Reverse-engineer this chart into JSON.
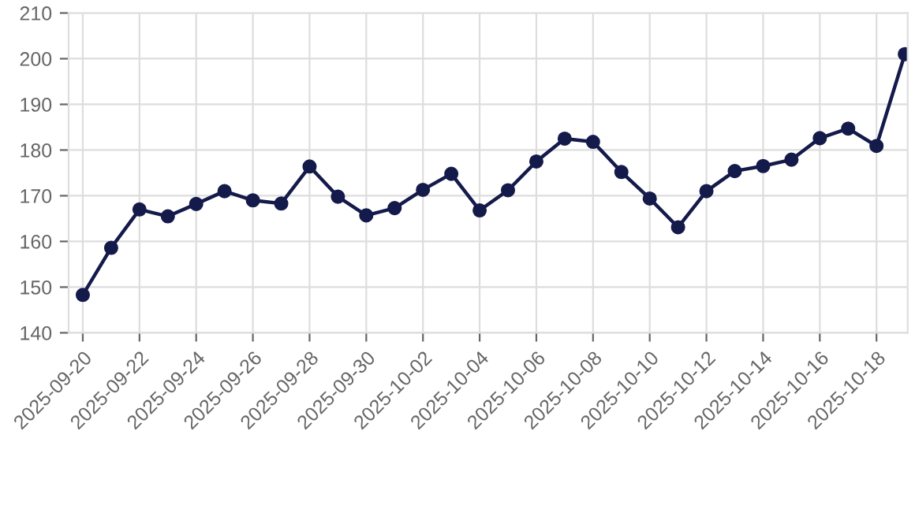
{
  "chart_data": {
    "type": "line",
    "categories": [
      "2025-09-20",
      null,
      "2025-09-22",
      null,
      "2025-09-24",
      null,
      "2025-09-26",
      null,
      "2025-09-28",
      null,
      "2025-09-30",
      null,
      "2025-10-02",
      null,
      "2025-10-04",
      null,
      "2025-10-06",
      null,
      "2025-10-08",
      null,
      "2025-10-10",
      null,
      "2025-10-12",
      null,
      "2025-10-14",
      null,
      "2025-10-16",
      null,
      "2025-10-18",
      null
    ],
    "series": [
      {
        "color": "#141a4a",
        "values": [
          148.3,
          158.6,
          167,
          165.5,
          168.2,
          171,
          169,
          168.3,
          176.4,
          169.8,
          165.7,
          167.3,
          171.3,
          174.8,
          166.8,
          171.2,
          177.5,
          182.5,
          181.8,
          175.2,
          169.4,
          163.1,
          171,
          175.4,
          176.5,
          177.9,
          182.6,
          184.7,
          180.9,
          201
        ]
      }
    ],
    "ylim": [
      140,
      210
    ],
    "yticks": [
      140,
      150,
      160,
      170,
      180,
      190,
      200,
      210
    ],
    "grid": true,
    "marker": "circle",
    "line_style": "solid",
    "legend": false
  }
}
